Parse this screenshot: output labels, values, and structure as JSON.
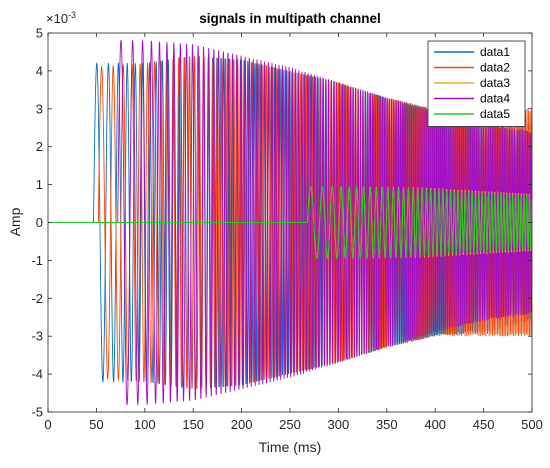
{
  "chart_data": {
    "type": "line",
    "title": "signals in multipath channel",
    "xlabel": "Time (ms)",
    "ylabel": "Amp",
    "y_exponent_label": "×10",
    "y_exponent_power": "-3",
    "xlim": [
      0,
      500
    ],
    "ylim": [
      -5,
      5
    ],
    "y_scale_factor": 0.001,
    "x_ticks": [
      0,
      50,
      100,
      150,
      200,
      250,
      300,
      350,
      400,
      450,
      500
    ],
    "x_tick_labels": [
      "0",
      "50",
      "100",
      "150",
      "200",
      "250",
      "300",
      "350",
      "400",
      "450",
      "500"
    ],
    "y_ticks": [
      -5,
      -4,
      -3,
      -2,
      -1,
      0,
      1,
      2,
      3,
      4,
      5
    ],
    "y_tick_labels": [
      "-5",
      "-4",
      "-3",
      "-2",
      "-1",
      "0",
      "1",
      "2",
      "3",
      "4",
      "5"
    ],
    "grid": false,
    "legend_position": "top-right",
    "series": [
      {
        "name": "data1",
        "color": "#0072BD",
        "onset_ms": 47,
        "envelope": [
          [
            47,
            4.2
          ],
          [
            100,
            4.2
          ],
          [
            150,
            4.4
          ],
          [
            200,
            4.3
          ],
          [
            300,
            3.7
          ],
          [
            350,
            3.3
          ],
          [
            400,
            3.0
          ],
          [
            450,
            2.9
          ],
          [
            500,
            2.6
          ]
        ]
      },
      {
        "name": "data2",
        "color": "#FF4500",
        "onset_ms": 52,
        "envelope": [
          [
            52,
            4.1
          ],
          [
            100,
            4.2
          ],
          [
            150,
            4.4
          ],
          [
            200,
            4.3
          ],
          [
            300,
            3.7
          ],
          [
            350,
            3.3
          ],
          [
            400,
            3.0
          ],
          [
            450,
            3.0
          ],
          [
            500,
            3.0
          ]
        ]
      },
      {
        "name": "data3",
        "color": "#EDB120",
        "onset_ms": 268,
        "envelope": [
          [
            268,
            0.95
          ],
          [
            300,
            0.95
          ],
          [
            400,
            0.9
          ],
          [
            500,
            0.75
          ]
        ]
      },
      {
        "name": "data4",
        "color": "#A00FC0",
        "onset_ms": 72,
        "envelope": [
          [
            72,
            4.8
          ],
          [
            100,
            4.8
          ],
          [
            150,
            4.7
          ],
          [
            200,
            4.4
          ],
          [
            250,
            4.1
          ],
          [
            300,
            3.7
          ],
          [
            350,
            3.3
          ],
          [
            400,
            2.9
          ],
          [
            450,
            2.6
          ],
          [
            500,
            2.4
          ]
        ]
      },
      {
        "name": "data5",
        "color": "#22CC22",
        "onset_ms": 268,
        "envelope": [
          [
            268,
            0.95
          ],
          [
            300,
            0.95
          ],
          [
            400,
            0.85
          ],
          [
            500,
            0.7
          ]
        ]
      }
    ]
  }
}
